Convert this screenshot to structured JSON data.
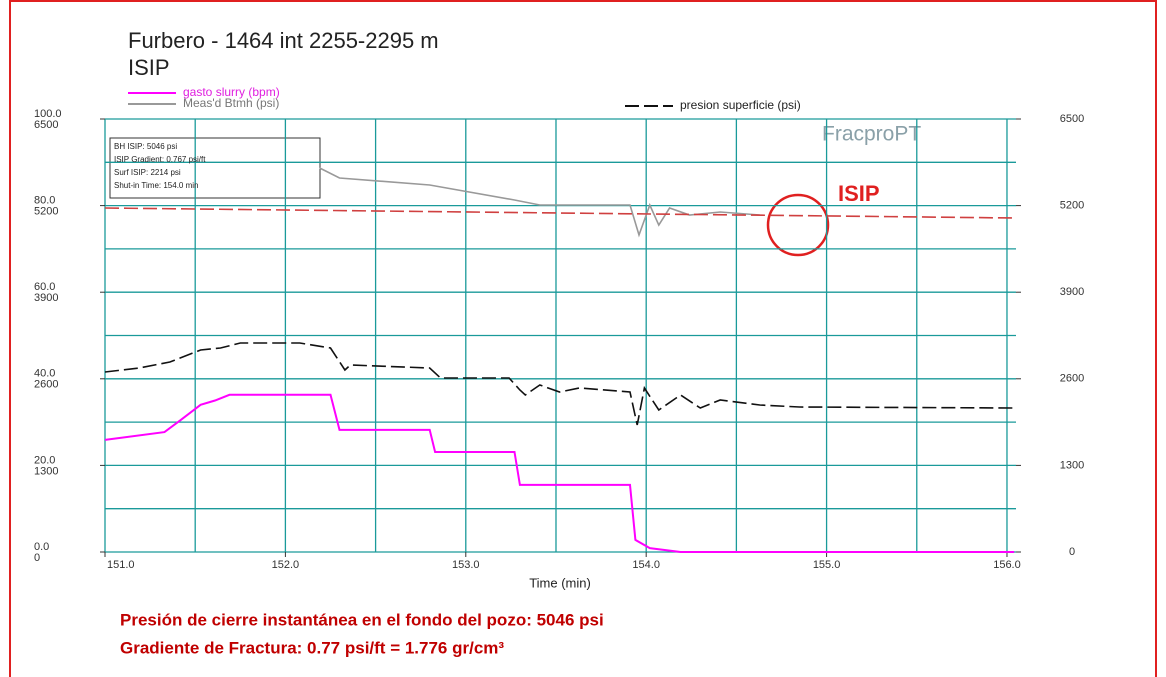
{
  "chart_data": {
    "type": "line",
    "title": "Furbero - 1464 int 2255-2295 m",
    "subtitle": "ISIP",
    "x_label": "Time (min)",
    "xlim": [
      151.0,
      156.05
    ],
    "xticks": [
      {
        "value": 151,
        "label": "151.0"
      },
      {
        "value": 152,
        "label": "152.0"
      },
      {
        "value": 153,
        "label": "153.0"
      },
      {
        "value": 154,
        "label": "154.0"
      },
      {
        "value": 155,
        "label": "155.0"
      },
      {
        "value": 156,
        "label": "156.0"
      }
    ],
    "x_grid": [
      151.0,
      151.5,
      152.0,
      152.5,
      153.0,
      153.5,
      154.0,
      154.5,
      155.0,
      155.5,
      156.0
    ],
    "ylim": [
      0,
      6500
    ],
    "yticks": [
      0,
      1300,
      2600,
      3900,
      5200,
      6500
    ],
    "y_grid": [
      0,
      650,
      1300,
      1950,
      2600,
      3250,
      3900,
      4550,
      5200,
      5850,
      6500
    ],
    "y2lim": [
      0,
      100
    ],
    "y2ticks": [
      {
        "value": 0,
        "label": "0.0"
      },
      {
        "value": 20,
        "label": "20.0"
      },
      {
        "value": 40,
        "label": "40.0"
      },
      {
        "value": 60,
        "label": "60.0"
      },
      {
        "value": 80,
        "label": "80.0"
      },
      {
        "value": 100,
        "label": "100.0"
      }
    ],
    "grid": true,
    "grid_color": "#1a9a9a",
    "series": [
      {
        "name": "gasto slurry (bpm)",
        "color": "#ff00ff",
        "axis": "y2",
        "dash": false,
        "x": [
          151.0,
          151.33,
          151.42,
          151.53,
          151.61,
          151.69,
          152.25,
          152.3,
          152.8,
          152.83,
          153.27,
          153.3,
          153.91,
          153.94,
          154.02,
          154.19,
          156.04
        ],
        "values": [
          25.9,
          27.7,
          30.5,
          34,
          35,
          36.3,
          36.3,
          28.2,
          28.2,
          23.1,
          23.1,
          15.5,
          15.5,
          2.8,
          0.9,
          0,
          0
        ]
      },
      {
        "name": "Meas'd Btmh (psi)",
        "color": "#999999",
        "dash": false,
        "x": [
          152.19,
          152.3,
          152.8,
          153.27,
          153.41,
          153.91,
          153.96,
          154.02,
          154.07,
          154.13,
          154.24,
          154.41,
          154.63
        ],
        "values": [
          5764,
          5614,
          5509,
          5284,
          5209,
          5209,
          4758,
          5209,
          4908,
          5164,
          5059,
          5104,
          5059
        ]
      },
      {
        "name": "presion superficie (psi)",
        "color": "#111111",
        "dash": true,
        "x": [
          151.0,
          151.19,
          151.36,
          151.53,
          151.64,
          151.75,
          152.08,
          152.25,
          152.33,
          152.36,
          152.8,
          152.86,
          153.24,
          153.3,
          153.33,
          153.41,
          153.52,
          153.63,
          153.91,
          153.95,
          153.99,
          154.07,
          154.19,
          154.3,
          154.41,
          154.63,
          154.85,
          156.04
        ],
        "values": [
          2702,
          2762,
          2852,
          3032,
          3062,
          3137,
          3137,
          3062,
          2732,
          2807,
          2762,
          2612,
          2612,
          2432,
          2357,
          2507,
          2402,
          2462,
          2402,
          1906,
          2462,
          2131,
          2357,
          2161,
          2282,
          2207,
          2177,
          2162
        ]
      },
      {
        "color": "#d04040",
        "dash": true,
        "x": [
          151.0,
          156.04
        ],
        "values": [
          5164,
          5014
        ]
      }
    ],
    "info_box": [
      "BH ISIP: 5046 psi",
      "ISIP Gradient: 0.767 psi/ft",
      "Surf ISIP: 2214 psi",
      "Shut-in Time: 154.0 min"
    ],
    "logo": "FracproPT",
    "annotation": "ISIP",
    "notes": [
      "Presión de cierre instantánea en el fondo del pozo: 5046 psi",
      "Gradiente de Fractura: 0.77 psi/ft = 1.776 gr/cm³"
    ]
  }
}
